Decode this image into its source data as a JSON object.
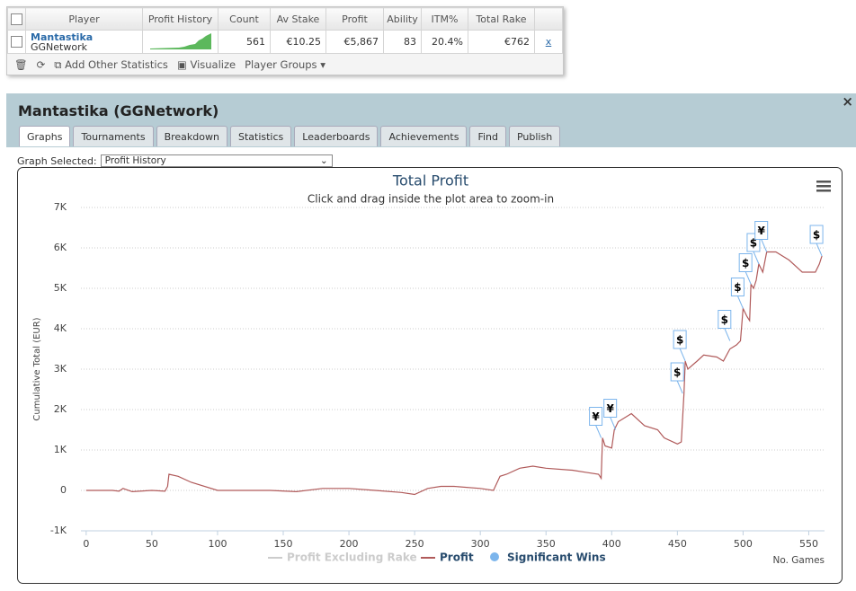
{
  "table": {
    "headers": [
      "Player",
      "Profit History",
      "Count",
      "Av Stake",
      "Profit",
      "Ability",
      "ITM%",
      "Total Rake"
    ],
    "row": {
      "player": "Mantastika",
      "network": "GGNetwork",
      "count": "561",
      "av_stake": "€10.25",
      "profit": "€5,867",
      "ability": "83",
      "itm": "20.4%",
      "total_rake": "€762",
      "remove": "x"
    }
  },
  "toolbar": {
    "add": "Add Other Statistics",
    "visualize": "Visualize",
    "groups": "Player Groups"
  },
  "panel": {
    "title": "Mantastika (GGNetwork)",
    "close": "×",
    "tabs": [
      "Graphs",
      "Tournaments",
      "Breakdown",
      "Statistics",
      "Leaderboards",
      "Achievements",
      "Find",
      "Publish"
    ],
    "graph_label": "Graph Selected:",
    "graph_value": "Profit History"
  },
  "chart_data": {
    "type": "line",
    "title": "Total Profit",
    "subtitle": "Click and drag inside the plot area to zoom-in",
    "y_label": "Cumulative Total (EUR)",
    "x_label": "No. Games",
    "xlim": [
      -4,
      562
    ],
    "xticks": [
      0,
      50,
      100,
      150,
      200,
      250,
      300,
      350,
      400,
      450,
      500,
      550
    ],
    "ylim": [
      -1000,
      7000
    ],
    "yticks": [
      {
        "value": -1000,
        "label": "-1K"
      },
      0,
      {
        "value": 1000,
        "label": "1K"
      },
      {
        "value": 2000,
        "label": "2K"
      },
      {
        "value": 3000,
        "label": "3K"
      },
      {
        "value": 4000,
        "label": "4K"
      },
      {
        "value": 5000,
        "label": "5K"
      },
      {
        "value": 6000,
        "label": "6K"
      },
      {
        "value": 7000,
        "label": "7K"
      }
    ],
    "grid": true,
    "series": [
      {
        "name": "Profit Excluding Rake",
        "color": "#cccccc",
        "visible": false
      },
      {
        "name": "Profit",
        "color": "#b05a5a",
        "x": [
          0,
          20,
          25,
          28,
          35,
          50,
          60,
          62,
          63,
          70,
          80,
          100,
          120,
          140,
          160,
          180,
          200,
          220,
          240,
          250,
          260,
          270,
          280,
          300,
          310,
          315,
          320,
          330,
          340,
          350,
          370,
          380,
          390,
          392,
          393,
          395,
          400,
          402,
          405,
          415,
          425,
          435,
          440,
          450,
          453,
          455,
          456,
          458,
          465,
          470,
          480,
          485,
          490,
          495,
          498,
          500,
          503,
          505,
          506,
          508,
          510,
          512,
          515,
          518,
          525,
          535,
          545,
          555,
          558,
          560
        ],
        "values": [
          0,
          0,
          -20,
          50,
          -30,
          0,
          -20,
          100,
          400,
          350,
          200,
          0,
          0,
          0,
          -30,
          50,
          50,
          0,
          -50,
          -100,
          50,
          100,
          100,
          50,
          0,
          350,
          400,
          550,
          600,
          550,
          500,
          450,
          400,
          300,
          1300,
          1100,
          1050,
          1500,
          1700,
          1900,
          1600,
          1500,
          1300,
          1150,
          1200,
          2400,
          3200,
          3000,
          3200,
          3350,
          3300,
          3200,
          3500,
          3600,
          3700,
          4500,
          4300,
          4200,
          5100,
          5000,
          5200,
          5600,
          5400,
          5900,
          5900,
          5700,
          5400,
          5400,
          5600,
          5800
        ]
      },
      {
        "name": "Significant Wins",
        "color": "#7cb5ec",
        "x": [
          392,
          403,
          454,
          456,
          490,
          500,
          506,
          512,
          518,
          560
        ],
        "values": [
          1300,
          1500,
          2400,
          3200,
          3700,
          4500,
          5100,
          5600,
          5900,
          5800
        ],
        "labels": [
          "¥",
          "¥",
          "$",
          "$",
          "$",
          "$",
          "$",
          "$",
          "¥",
          "$"
        ]
      }
    ]
  }
}
